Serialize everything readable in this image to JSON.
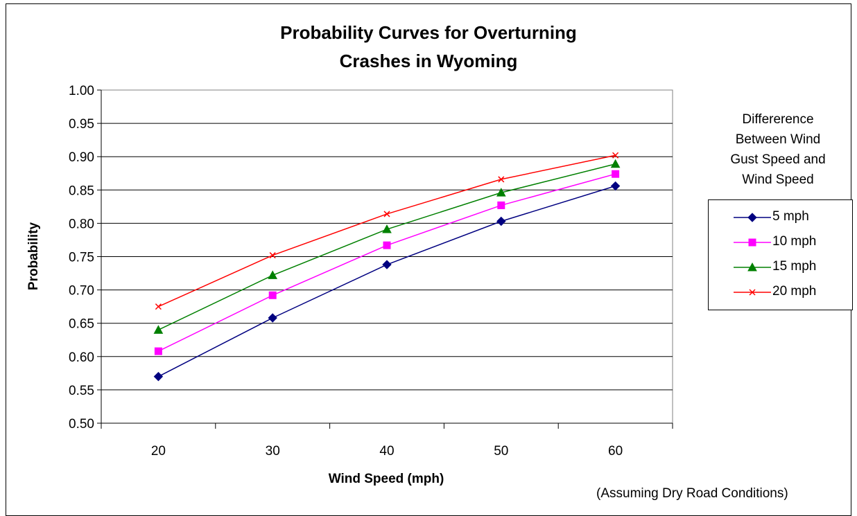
{
  "chart_data": {
    "type": "line",
    "title_lines": [
      "Probability Curves for Overturning",
      "Crashes in Wyoming"
    ],
    "xlabel": "Wind Speed (mph)",
    "ylabel": "Probability",
    "x": [
      20,
      30,
      40,
      50,
      60
    ],
    "x_ticks": [
      "20",
      "30",
      "40",
      "50",
      "60"
    ],
    "ylim": [
      0.5,
      1.0
    ],
    "y_ticks": [
      "0.50",
      "0.55",
      "0.60",
      "0.65",
      "0.70",
      "0.75",
      "0.80",
      "0.85",
      "0.90",
      "0.95",
      "1.00"
    ],
    "grid": "horizontal",
    "legend_title_lines": [
      "Differerence",
      "Between Wind",
      "Gust Speed and",
      "Wind Speed"
    ],
    "legend_position": "right",
    "series": [
      {
        "name": "5 mph",
        "color": "#000080",
        "marker": "diamond",
        "values": [
          0.57,
          0.658,
          0.738,
          0.803,
          0.856
        ]
      },
      {
        "name": "10 mph",
        "color": "#FF00FF",
        "marker": "square",
        "values": [
          0.608,
          0.692,
          0.767,
          0.827,
          0.874
        ]
      },
      {
        "name": "15 mph",
        "color": "#008000",
        "marker": "triangle",
        "values": [
          0.64,
          0.722,
          0.791,
          0.846,
          0.889
        ]
      },
      {
        "name": "20 mph",
        "color": "#FF0000",
        "marker": "x",
        "values": [
          0.675,
          0.752,
          0.814,
          0.866,
          0.902
        ]
      }
    ],
    "note": "(Assuming Dry Road Conditions)"
  }
}
